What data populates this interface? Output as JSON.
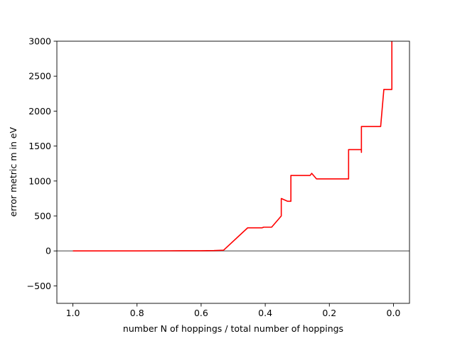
{
  "chart_data": {
    "type": "line",
    "title": "",
    "xlabel": "number N of hoppings / total number of hoppings",
    "ylabel": "error metric m in eV",
    "xlim": [
      1.05,
      -0.05
    ],
    "ylim": [
      -750,
      3000
    ],
    "x_inverted": true,
    "grid": false,
    "legend": "none",
    "xticks": [
      1.0,
      0.8,
      0.6,
      0.4,
      0.2,
      0.0
    ],
    "xtick_labels": [
      "1.0",
      "0.8",
      "0.6",
      "0.4",
      "0.2",
      "0.0"
    ],
    "yticks": [
      -500,
      0,
      500,
      1000,
      1500,
      2000,
      2500,
      3000
    ],
    "ytick_labels": [
      "−500",
      "0",
      "500",
      "1000",
      "1500",
      "2000",
      "2500",
      "3000"
    ],
    "reference_line": {
      "y": 0,
      "color": "#808080"
    },
    "series": [
      {
        "color": "#ff0000",
        "x": [
          1.0,
          0.9,
          0.8,
          0.7,
          0.6,
          0.56,
          0.53,
          0.455,
          0.41,
          0.405,
          0.38,
          0.35,
          0.35,
          0.33,
          0.32,
          0.32,
          0.26,
          0.255,
          0.24,
          0.14,
          0.14,
          0.1,
          0.1,
          0.1,
          0.04,
          0.03,
          0.03,
          0.005,
          0.005
        ],
        "y": [
          0,
          0,
          0,
          2,
          3,
          5,
          10,
          330,
          330,
          340,
          340,
          500,
          750,
          710,
          710,
          1080,
          1080,
          1110,
          1030,
          1030,
          1450,
          1450,
          1410,
          1780,
          1780,
          2310,
          2310,
          2310,
          3000
        ]
      }
    ]
  }
}
